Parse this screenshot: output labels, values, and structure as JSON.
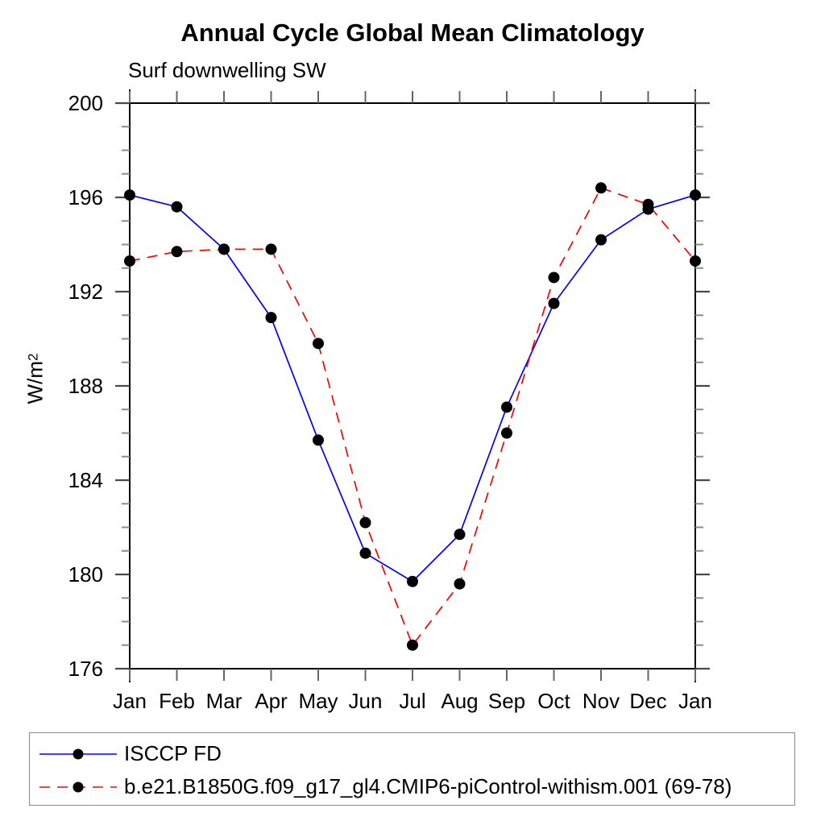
{
  "chart_data": {
    "type": "line",
    "title": "Annual Cycle Global Mean Climatology",
    "subtitle": "Surf downwelling SW",
    "ylabel": {
      "base": "W/m",
      "sup": "2"
    },
    "ylim": [
      176,
      200
    ],
    "ytick_major": [
      176,
      180,
      184,
      188,
      192,
      196,
      200
    ],
    "ytick_minor_step": 1,
    "grid": false,
    "legend_position": "bottom",
    "marker_color": "#000000",
    "axis_color": "#000000",
    "categories": [
      "Jan",
      "Feb",
      "Mar",
      "Apr",
      "May",
      "Jun",
      "Jul",
      "Aug",
      "Sep",
      "Oct",
      "Nov",
      "Dec",
      "Jan"
    ],
    "series": [
      {
        "name": "ISCCP FD",
        "color": "#0000ff",
        "line_style": "solid",
        "marker": "black-dot",
        "values": [
          196.1,
          195.6,
          193.8,
          190.9,
          185.7,
          180.9,
          179.7,
          181.7,
          187.1,
          191.5,
          194.2,
          195.5,
          196.1
        ]
      },
      {
        "name": "b.e21.B1850G.f09_g17_gl4.CMIP6-piControl-withism.001 (69-78)",
        "color": "#ff0000",
        "line_style": "dashed",
        "marker": "black-dot",
        "values": [
          193.3,
          193.7,
          193.8,
          193.8,
          189.8,
          182.2,
          177.0,
          179.6,
          186.0,
          192.6,
          196.4,
          195.7,
          193.3
        ]
      }
    ]
  }
}
